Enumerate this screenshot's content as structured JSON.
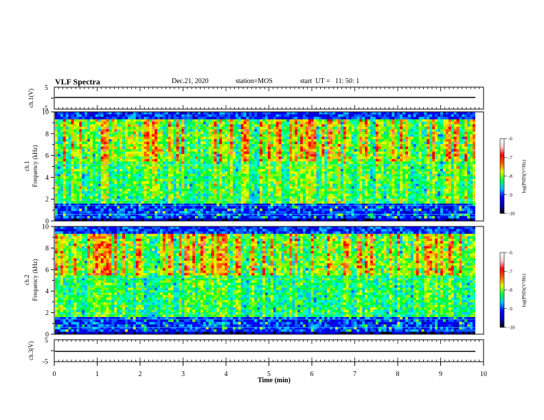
{
  "header": {
    "title": "VLF Spectra",
    "date": "Dec.21, 2020",
    "station": "station=MOS",
    "start": "start  UT =   11: 50: 1"
  },
  "colors": {
    "spectrum": [
      "#000000",
      "#0000c0",
      "#0000ff",
      "#0060ff",
      "#00c0ff",
      "#00ffc0",
      "#00ff40",
      "#80ff00",
      "#e0ff00",
      "#ffc000",
      "#ff6000",
      "#ff0000",
      "#ff8080",
      "#ffd0d0",
      "#ffffff"
    ]
  },
  "chart_data": [
    {
      "type": "line",
      "panel": "ch1",
      "ylabel": "ch.1(V)",
      "ylim": [
        -5,
        5
      ],
      "y_ticks": [
        "5",
        "-5"
      ],
      "series": [
        {
          "values": [
            -1,
            -1
          ]
        }
      ]
    },
    {
      "type": "heatmap",
      "panel": "ch1-spectrogram",
      "ylabel": "ch.1\nFrequency (kHz)",
      "ylim": [
        0,
        10
      ],
      "y_ticks": [
        "0",
        "2",
        "4",
        "6",
        "8",
        "10"
      ],
      "colorbar": {
        "label": "log(PSD)(V²/Hz)",
        "range": [
          -10,
          -6
        ],
        "ticks": [
          "-6",
          "-7",
          "-8",
          "-9",
          "-10"
        ]
      }
    },
    {
      "type": "heatmap",
      "panel": "ch2-spectrogram",
      "ylabel": "ch.2\nFrequency (kHz)",
      "ylim": [
        0,
        10
      ],
      "y_ticks": [
        "0",
        "2",
        "4",
        "6",
        "8",
        "10"
      ],
      "colorbar": {
        "label": "log(PSD)(V²/Hz)",
        "range": [
          -10,
          -6
        ],
        "ticks": [
          "-6",
          "-7",
          "-8",
          "-9",
          "-10"
        ]
      }
    },
    {
      "type": "line",
      "panel": "ch3",
      "ylabel": "ch.3(V)",
      "ylim": [
        -5,
        5
      ],
      "y_ticks": [
        "5",
        "-5"
      ],
      "series": [
        {
          "values": [
            -1,
            -1
          ]
        }
      ]
    }
  ],
  "x_axis": {
    "label": "Time  (min)",
    "range": [
      0,
      10
    ],
    "ticks": [
      "0",
      "1",
      "2",
      "3",
      "4",
      "5",
      "6",
      "7",
      "8",
      "9",
      "10"
    ]
  }
}
